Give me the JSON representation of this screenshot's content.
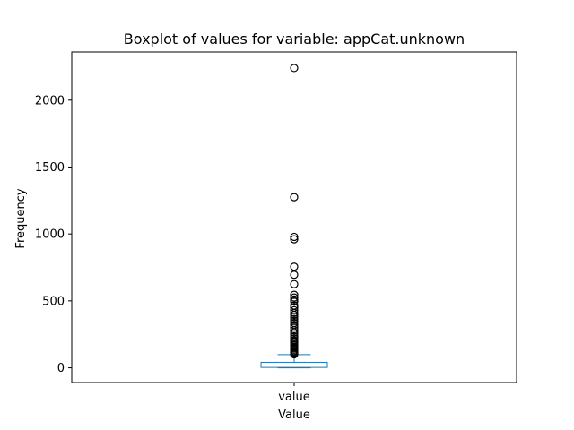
{
  "chart_data": {
    "type": "boxplot",
    "title": "Boxplot of values for variable: appCat.unknown",
    "xlabel": "Value",
    "ylabel": "Frequency",
    "categories": [
      "value"
    ],
    "ylim": [
      -110,
      2360
    ],
    "yticks": [
      0,
      500,
      1000,
      1500,
      2000
    ],
    "grid": false,
    "colors": {
      "box": "#1f77b4",
      "median": "#2ca02c",
      "outlier": "#000000"
    },
    "box": {
      "min": 0,
      "q1": 3,
      "median": 14,
      "q3": 41,
      "max": 98
    },
    "outliers": [
      2240,
      1275,
      978,
      960,
      755,
      695,
      625,
      545,
      525,
      510,
      495,
      465,
      450,
      430,
      410,
      395,
      380,
      365,
      350,
      335,
      320,
      300,
      280,
      265,
      250,
      235,
      220,
      205,
      195,
      185,
      175,
      165,
      155,
      145,
      135,
      125,
      118,
      112,
      106,
      101
    ]
  }
}
